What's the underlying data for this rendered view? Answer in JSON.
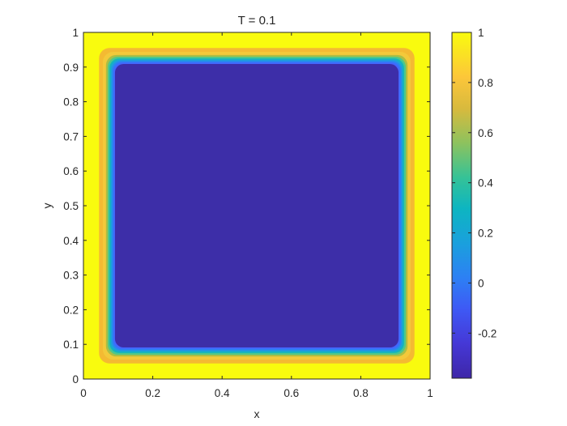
{
  "chart_data": {
    "type": "heatmap",
    "title": "T = 0.1",
    "xlabel": "x",
    "ylabel": "y",
    "xlim": [
      0,
      1
    ],
    "ylim": [
      0,
      1
    ],
    "x_ticks": [
      0,
      0.2,
      0.4,
      0.6,
      0.8,
      1
    ],
    "x_tick_labels": [
      "0",
      "0.2",
      "0.4",
      "0.6",
      "0.8",
      "1"
    ],
    "y_ticks": [
      0,
      0.1,
      0.2,
      0.3,
      0.4,
      0.5,
      0.6,
      0.7,
      0.8,
      0.9,
      1
    ],
    "y_tick_labels": [
      "0",
      "0.1",
      "0.2",
      "0.3",
      "0.4",
      "0.5",
      "0.6",
      "0.7",
      "0.8",
      "0.9",
      "1"
    ],
    "colorbar": {
      "range": [
        -0.38,
        1
      ],
      "ticks": [
        -0.2,
        0,
        0.2,
        0.4,
        0.6,
        0.8,
        1
      ],
      "tick_labels": [
        "-0.2",
        "0",
        "0.2",
        "0.4",
        "0.6",
        "0.8",
        "1"
      ],
      "colormap": "parula"
    },
    "contours": [
      {
        "level": 1.0,
        "color": "#F9FB0E",
        "inset": 0.0,
        "corner_radius": 0.0
      },
      {
        "level": 0.9,
        "color": "#F4BA32",
        "inset": 0.045,
        "corner_radius": 0.03
      },
      {
        "level": 0.78,
        "color": "#F3C93A",
        "inset": 0.056,
        "corner_radius": 0.03
      },
      {
        "level": 0.6,
        "color": "#ABBE44",
        "inset": 0.065,
        "corner_radius": 0.03
      },
      {
        "level": 0.45,
        "color": "#4FC78A",
        "inset": 0.07,
        "corner_radius": 0.03
      },
      {
        "level": 0.3,
        "color": "#14B5BC",
        "inset": 0.075,
        "corner_radius": 0.028
      },
      {
        "level": 0.15,
        "color": "#1D9FDC",
        "inset": 0.079,
        "corner_radius": 0.027
      },
      {
        "level": 0.02,
        "color": "#2D80F4",
        "inset": 0.083,
        "corner_radius": 0.026
      },
      {
        "level": -0.12,
        "color": "#4367FD",
        "inset": 0.087,
        "corner_radius": 0.025
      },
      {
        "level": -0.38,
        "color": "#3D2EA8",
        "inset": 0.091,
        "corner_radius": 0.025
      }
    ]
  }
}
